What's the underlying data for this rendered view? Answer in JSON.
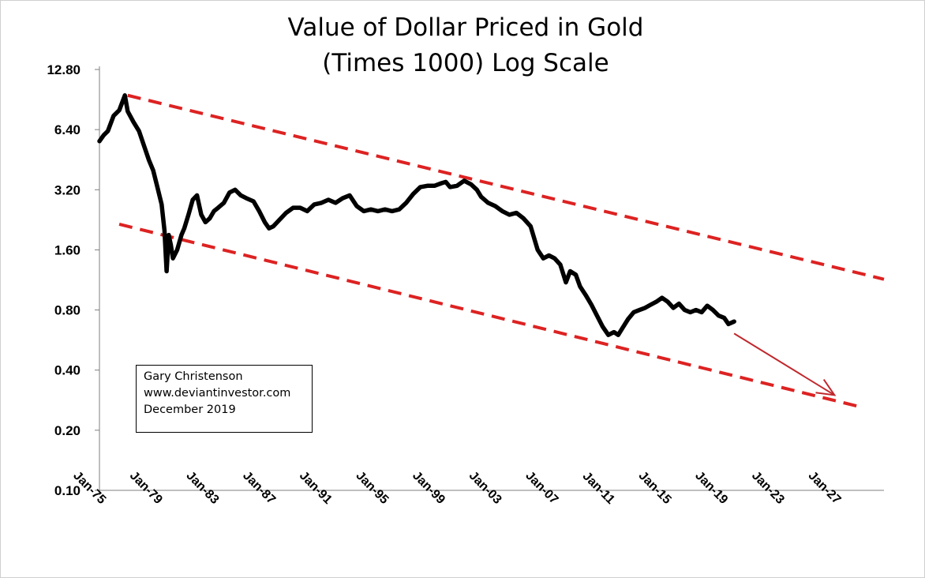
{
  "chart_data": {
    "type": "line",
    "title": "Value of Dollar Priced in Gold",
    "subtitle": "(Times 1000) Log Scale",
    "yscale": "log2",
    "ylim": [
      0.1,
      12.8
    ],
    "y_ticks": [
      "12.80",
      "6.40",
      "3.20",
      "1.60",
      "0.80",
      "0.40",
      "0.20",
      "0.10"
    ],
    "y_tick_values": [
      12.8,
      6.4,
      3.2,
      1.6,
      0.8,
      0.4,
      0.2,
      0.1
    ],
    "x_ticks": [
      "Jan-75",
      "Jan-79",
      "Jan-83",
      "Jan-87",
      "Jan-91",
      "Jan-95",
      "Jan-99",
      "Jan-03",
      "Jan-07",
      "Jan-11",
      "Jan-15",
      "Jan-19",
      "Jan-23",
      "Jan-27"
    ],
    "x_tick_years": [
      1975,
      1979,
      1983,
      1987,
      1991,
      1995,
      1999,
      2003,
      2007,
      2011,
      2015,
      2019,
      2023,
      2027
    ],
    "xlim": [
      1975,
      2030.5
    ],
    "series": [
      {
        "name": "Value of Dollar Priced in Gold x1000",
        "color": "#000000",
        "x": [
          1975.0,
          1975.3,
          1975.6,
          1976.0,
          1976.4,
          1976.8,
          1977.0,
          1977.4,
          1977.8,
          1978.2,
          1978.5,
          1978.8,
          1979.1,
          1979.4,
          1979.6,
          1979.75,
          1979.9,
          1980.05,
          1980.2,
          1980.5,
          1980.8,
          1981.0,
          1981.3,
          1981.6,
          1981.9,
          1982.2,
          1982.5,
          1982.8,
          1983.1,
          1983.4,
          1983.8,
          1984.2,
          1984.6,
          1985.0,
          1985.4,
          1985.9,
          1986.3,
          1986.7,
          1987.0,
          1987.3,
          1987.7,
          1988.2,
          1988.7,
          1989.2,
          1989.7,
          1990.2,
          1990.7,
          1991.2,
          1991.7,
          1992.2,
          1992.7,
          1993.2,
          1993.7,
          1994.2,
          1994.7,
          1995.2,
          1995.7,
          1996.2,
          1996.7,
          1997.2,
          1997.7,
          1998.2,
          1998.7,
          1999.2,
          1999.5,
          1999.8,
          2000.3,
          2000.8,
          2001.3,
          2001.7,
          2002.0,
          2002.5,
          2003.0,
          2003.5,
          2004.0,
          2004.5,
          2005.0,
          2005.5,
          2006.0,
          2006.4,
          2006.8,
          2007.2,
          2007.6,
          2008.0,
          2008.3,
          2008.7,
          2009.0,
          2009.4,
          2009.8,
          2010.2,
          2010.6,
          2011.0,
          2011.4,
          2011.7,
          2012.0,
          2012.4,
          2012.8,
          2013.2,
          2013.6,
          2014.0,
          2014.4,
          2014.8,
          2015.2,
          2015.6,
          2016.0,
          2016.4,
          2016.8,
          2017.2,
          2017.6,
          2018.0,
          2018.4,
          2018.8,
          2019.2,
          2019.5,
          2019.9
        ],
        "values": [
          5.6,
          6.0,
          6.3,
          7.5,
          8.0,
          9.5,
          7.9,
          7.0,
          6.3,
          5.2,
          4.5,
          4.0,
          3.3,
          2.7,
          2.0,
          1.25,
          1.9,
          1.7,
          1.45,
          1.6,
          1.9,
          2.05,
          2.4,
          2.85,
          3.0,
          2.4,
          2.2,
          2.3,
          2.5,
          2.6,
          2.75,
          3.1,
          3.2,
          3.0,
          2.9,
          2.8,
          2.5,
          2.2,
          2.05,
          2.1,
          2.25,
          2.45,
          2.6,
          2.6,
          2.5,
          2.7,
          2.75,
          2.85,
          2.75,
          2.9,
          3.0,
          2.65,
          2.5,
          2.55,
          2.5,
          2.55,
          2.5,
          2.55,
          2.75,
          3.05,
          3.3,
          3.35,
          3.35,
          3.45,
          3.5,
          3.3,
          3.35,
          3.55,
          3.4,
          3.2,
          2.95,
          2.75,
          2.65,
          2.5,
          2.4,
          2.45,
          2.3,
          2.1,
          1.6,
          1.45,
          1.5,
          1.45,
          1.35,
          1.1,
          1.25,
          1.2,
          1.05,
          0.95,
          0.85,
          0.75,
          0.66,
          0.6,
          0.62,
          0.6,
          0.65,
          0.72,
          0.78,
          0.8,
          0.82,
          0.85,
          0.88,
          0.92,
          0.88,
          0.82,
          0.86,
          0.8,
          0.78,
          0.8,
          0.78,
          0.84,
          0.8,
          0.75,
          0.73,
          0.68,
          0.7
        ]
      }
    ],
    "trendlines": [
      {
        "name": "upper-trendline",
        "style": "dashed",
        "color": "#dd2222",
        "x": [
          1977.0,
          2030.5
        ],
        "y": [
          9.5,
          1.14
        ]
      },
      {
        "name": "lower-trendline",
        "style": "dashed",
        "color": "#dd2222",
        "x": [
          1976.4,
          2029.0
        ],
        "y": [
          2.15,
          0.26
        ]
      }
    ],
    "projection_arrow": {
      "color": "#c0282d",
      "from": {
        "x": 2019.9,
        "y": 0.61
      },
      "to": {
        "x": 2027.0,
        "y": 0.3
      }
    }
  },
  "annotation": {
    "author": "Gary Christenson",
    "website": "www.deviantinvestor.com",
    "date": "December 2019"
  }
}
